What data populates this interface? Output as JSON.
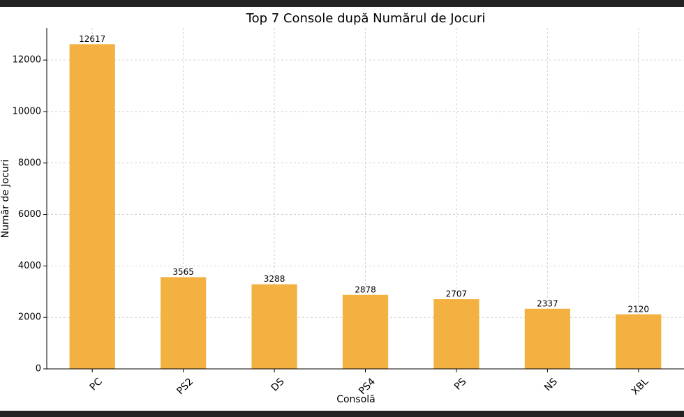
{
  "chart_data": {
    "type": "bar",
    "title": "Top 7 Console după Numărul de Jocuri",
    "x_label": "Consolă",
    "y_label": "Număr de Jocuri",
    "categories": [
      "PC",
      "PS2",
      "DS",
      "PS4",
      "PS",
      "NS",
      "XBL"
    ],
    "values": [
      12617,
      3565,
      3288,
      2878,
      2707,
      2337,
      2120
    ],
    "color": "#f2b140",
    "ylim": [
      0,
      13250
    ],
    "yticks": [
      0,
      2000,
      4000,
      6000,
      8000,
      10000,
      12000
    ],
    "grid": true
  }
}
